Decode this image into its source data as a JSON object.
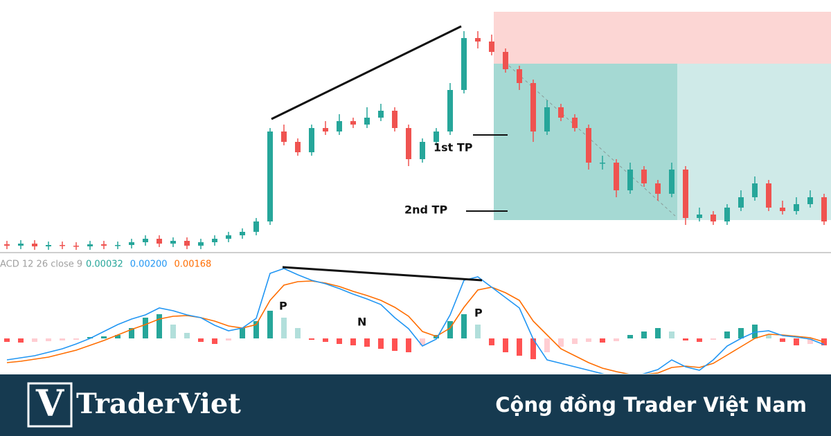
{
  "chart_data": [
    {
      "type": "candlestick",
      "ylim": [
        0,
        365
      ],
      "up_color": "#26a69a",
      "down_color": "#ef5350",
      "open": [
        12,
        10,
        13,
        9,
        11,
        10,
        9,
        12,
        10,
        11,
        15,
        20,
        13,
        17,
        10,
        15,
        20,
        25,
        30,
        45,
        175,
        160,
        145,
        180,
        175,
        190,
        185,
        195,
        205,
        180,
        135,
        160,
        175,
        235,
        310,
        305,
        290,
        265,
        245,
        175,
        210,
        195,
        180,
        130,
        130,
        90,
        120,
        100,
        85,
        120,
        50,
        55,
        45,
        65,
        80,
        100,
        65,
        60,
        70,
        80
      ],
      "high": [
        17,
        18,
        18,
        16,
        16,
        15,
        17,
        17,
        16,
        20,
        25,
        25,
        22,
        22,
        20,
        25,
        30,
        35,
        50,
        180,
        185,
        165,
        185,
        190,
        200,
        195,
        210,
        215,
        210,
        185,
        165,
        180,
        245,
        320,
        320,
        315,
        295,
        270,
        250,
        220,
        215,
        200,
        185,
        140,
        135,
        130,
        125,
        105,
        130,
        125,
        65,
        60,
        70,
        90,
        110,
        105,
        75,
        80,
        90,
        85
      ],
      "low": [
        5,
        5,
        4,
        4,
        5,
        4,
        4,
        5,
        5,
        6,
        10,
        8,
        8,
        5,
        5,
        10,
        15,
        20,
        25,
        40,
        155,
        140,
        140,
        170,
        170,
        180,
        180,
        190,
        175,
        125,
        130,
        155,
        170,
        230,
        295,
        285,
        260,
        235,
        160,
        170,
        190,
        175,
        120,
        120,
        80,
        85,
        95,
        75,
        80,
        40,
        45,
        40,
        40,
        60,
        75,
        60,
        55,
        55,
        65,
        40
      ],
      "close": [
        10,
        13,
        9,
        11,
        10,
        9,
        12,
        10,
        11,
        15,
        20,
        13,
        17,
        10,
        15,
        20,
        25,
        30,
        45,
        175,
        160,
        145,
        180,
        175,
        190,
        185,
        195,
        205,
        180,
        135,
        160,
        175,
        235,
        310,
        305,
        290,
        265,
        245,
        175,
        210,
        195,
        180,
        130,
        130,
        90,
        120,
        100,
        85,
        120,
        50,
        55,
        45,
        65,
        80,
        100,
        65,
        60,
        70,
        80,
        45
      ],
      "annotations": [
        "1st TP",
        "2nd TP"
      ]
    },
    {
      "type": "macd",
      "title": "ACD 12 26 close 9",
      "ylim": [
        -51,
        119
      ],
      "last_values": [
        {
          "value": 0.00032,
          "label": "0.00032",
          "color": "#26a69a"
        },
        {
          "value": 0.002,
          "label": "0.00200",
          "color": "#2196f3"
        },
        {
          "value": 0.00168,
          "label": "0.00168",
          "color": "#ff6d00"
        }
      ],
      "histogram": [
        -5,
        -6,
        -5,
        -4,
        -3,
        -2,
        2,
        3,
        5,
        15,
        30,
        35,
        20,
        8,
        -5,
        -8,
        -3,
        15,
        25,
        40,
        30,
        15,
        -2,
        -5,
        -8,
        -10,
        -12,
        -15,
        -18,
        -20,
        -10,
        5,
        25,
        35,
        20,
        -10,
        -20,
        -25,
        -30,
        -20,
        -12,
        -8,
        -5,
        -6,
        -4,
        5,
        10,
        15,
        10,
        -3,
        -5,
        -2,
        10,
        15,
        20,
        5,
        -5,
        -10,
        -8,
        -10
      ],
      "histogram_colors": [
        "#26a69a",
        "#b2dfdb",
        "#ff5252",
        "#ffcdd2"
      ],
      "macd_line": [
        -31,
        -28,
        -25,
        -20,
        -15,
        -8,
        0,
        10,
        20,
        28,
        34,
        44,
        40,
        34,
        30,
        19,
        11,
        15,
        29,
        94,
        101,
        92,
        84,
        79,
        72,
        64,
        57,
        49,
        30,
        14,
        -11,
        -1,
        34,
        84,
        89,
        74,
        59,
        44,
        -1,
        -31,
        -36,
        -41,
        -46,
        -51,
        -56,
        -56,
        -51,
        -45,
        -31,
        -41,
        -46,
        -31,
        -11,
        0,
        9,
        11,
        4,
        2,
        -1,
        -9
      ],
      "macd_color": "#2196f3",
      "signal_line": [
        -35,
        -33,
        -30,
        -27,
        -22,
        -17,
        -10,
        -3,
        5,
        13,
        20,
        28,
        32,
        33,
        30,
        25,
        18,
        15,
        20,
        55,
        77,
        82,
        83,
        80,
        75,
        68,
        62,
        55,
        45,
        32,
        10,
        3,
        15,
        45,
        70,
        74,
        66,
        55,
        25,
        5,
        -15,
        -25,
        -35,
        -43,
        -48,
        -52,
        -52,
        -50,
        -42,
        -40,
        -42,
        -36,
        -24,
        -12,
        0,
        6,
        5,
        3,
        1,
        -5
      ],
      "signal_color": "#ff6d00",
      "annotations": [
        "P",
        "N",
        "P"
      ]
    }
  ],
  "footer": {
    "logo_mark": "V",
    "brand": "TraderViet",
    "tagline": "Cộng đồng Trader Việt Nam"
  }
}
